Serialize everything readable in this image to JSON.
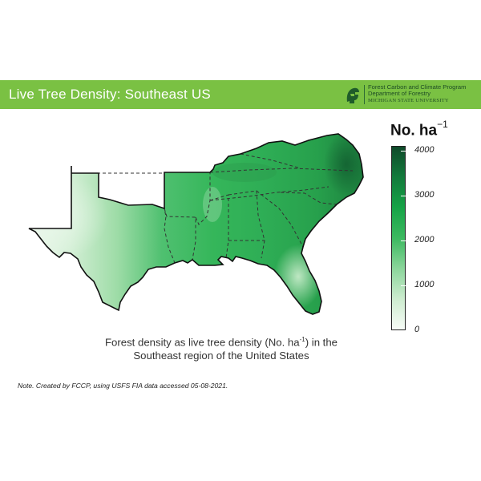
{
  "banner": {
    "title": "Live Tree Density: Southeast US",
    "color": "#7ac143"
  },
  "logo": {
    "icon": "spartan-helmet-icon",
    "line1": "Forest Carbon and Climate Program",
    "line2": "Department of Forestry",
    "line3": "MICHIGAN STATE UNIVERSITY"
  },
  "map": {
    "region": "Southeast US",
    "fill_low": "#eef8ee",
    "fill_high": "#0f4d2a"
  },
  "legend": {
    "title": "No. ha",
    "title_sup": "−1",
    "min": 0,
    "max": 4000,
    "ticks": [
      {
        "value": 0,
        "label": "0"
      },
      {
        "value": 1000,
        "label": "1000"
      },
      {
        "value": 2000,
        "label": "2000"
      },
      {
        "value": 3000,
        "label": "3000"
      },
      {
        "value": 4000,
        "label": "4000"
      }
    ],
    "scale_max": 4100,
    "colors": [
      "#f7fcf7",
      "#cdeccf",
      "#8bd59b",
      "#3cb960",
      "#16a347",
      "#137a3c",
      "#0f4a2a"
    ]
  },
  "caption": {
    "line1_before": "Forest density as live tree density (No. ha",
    "line1_sup": "-1",
    "line1_after": ") in the",
    "line2": "Southeast region of the United States"
  },
  "note": "Note. Created by FCCP, using USFS FIA data accessed 05-08-2021."
}
